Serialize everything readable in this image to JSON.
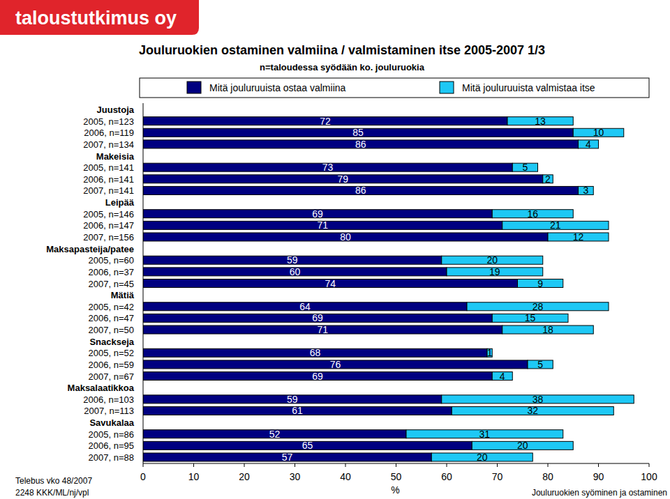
{
  "chart_data": {
    "type": "bar",
    "title": "Jouluruokien ostaminen valmiina / valmistaminen itse 2005-2007 1/3",
    "subtitle": "n=taloudessa syödään ko. jouluruokia",
    "xlabel": "%",
    "orientation": "horizontal",
    "stacked": true,
    "data_labels": true,
    "grid": false,
    "legend": "top",
    "xlim": [
      0,
      100
    ],
    "xticks": [
      0,
      10,
      20,
      30,
      40,
      50,
      60,
      70,
      80,
      90,
      100
    ],
    "categories": [
      "Juustoja",
      "2005, n=123",
      "2006, n=119",
      "2007, n=134",
      "Makeisia",
      "2005, n=141",
      "2006, n=141",
      "2007, n=141",
      "Leipää",
      "2005, n=146",
      "2006, n=147",
      "2007, n=156",
      "Maksapasteija/patee",
      "2005, n=60",
      "2006, n=37",
      "2007, n=45",
      "Mätiä",
      "2005, n=42",
      "2006, n=47",
      "2007, n=50",
      "Snackseja",
      "2005, n=52",
      "2006, n=59",
      "2007, n=67",
      "Maksalaatikkoa",
      "2006, n=103",
      "2007, n=113",
      "Savukalaa",
      "2005, n=86",
      "2006, n=95",
      "2007, n=88"
    ],
    "series": [
      {
        "name": "Mitä jouluruuista ostaa valmiina",
        "color": "#000080",
        "values": [
          null,
          72,
          85,
          86,
          null,
          73,
          79,
          86,
          null,
          69,
          71,
          80,
          null,
          59,
          60,
          74,
          null,
          64,
          69,
          71,
          null,
          68,
          76,
          69,
          null,
          59,
          61,
          null,
          52,
          65,
          57
        ]
      },
      {
        "name": "Mitä jouluruuista valmistaa itse",
        "color": "#1ec8f5",
        "values": [
          null,
          13,
          10,
          4,
          null,
          5,
          2,
          3,
          null,
          16,
          21,
          12,
          null,
          20,
          19,
          9,
          null,
          28,
          15,
          18,
          null,
          1,
          5,
          4,
          null,
          38,
          32,
          null,
          31,
          20,
          20
        ]
      }
    ]
  },
  "header": {
    "logo": "taloustutkimus oy"
  },
  "footer": {
    "source": "Telebus vko 48/2007",
    "code": "2248 KKK/ML/nj/vpl",
    "report": "Jouluruokien syöminen ja ostaminen"
  }
}
